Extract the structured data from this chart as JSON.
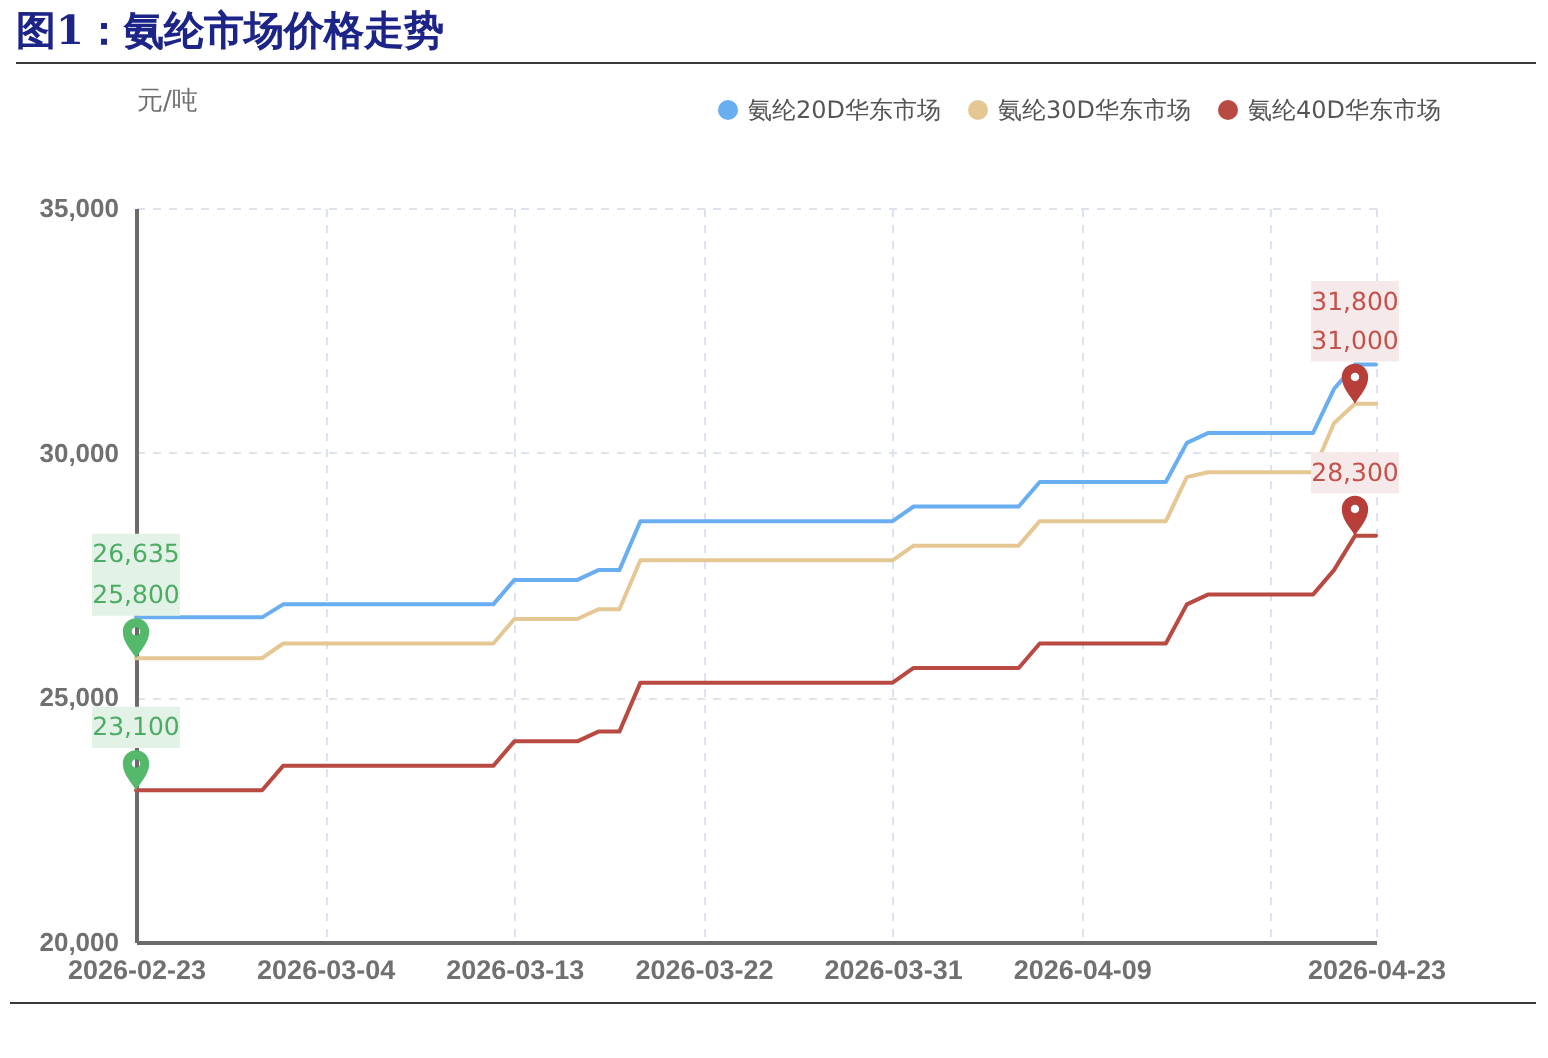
{
  "chart_data": {
    "type": "line",
    "title": "图1：氨纶市场价格走势",
    "ylabel": "元/吨",
    "x": [
      "2026-02-23",
      "2026-03-01",
      "2026-03-02",
      "2026-03-12",
      "2026-03-13",
      "2026-03-16",
      "2026-03-17",
      "2026-03-18",
      "2026-03-19",
      "2026-03-31",
      "2026-04-01",
      "2026-04-06",
      "2026-04-07",
      "2026-04-13",
      "2026-04-14",
      "2026-04-15",
      "2026-04-20",
      "2026-04-21",
      "2026-04-22",
      "2026-04-23"
    ],
    "series": [
      {
        "name": "氨纶20D华东市场",
        "color": "#6aaef2",
        "values": [
          26635,
          26635,
          26900,
          26900,
          27400,
          27400,
          27600,
          27600,
          28600,
          28600,
          28900,
          28900,
          29400,
          29400,
          30200,
          30400,
          30400,
          31300,
          31800,
          31800
        ]
      },
      {
        "name": "氨纶30D华东市场",
        "color": "#e5c794",
        "values": [
          25800,
          25800,
          26100,
          26100,
          26600,
          26600,
          26800,
          26800,
          27800,
          27800,
          28100,
          28100,
          28600,
          28600,
          29500,
          29600,
          29600,
          30600,
          31000,
          31000
        ]
      },
      {
        "name": "氨纶40D华东市场",
        "color": "#b84a42",
        "values": [
          23100,
          23100,
          23600,
          23600,
          24100,
          24100,
          24300,
          24300,
          25300,
          25300,
          25600,
          25600,
          26100,
          26100,
          26900,
          27100,
          27100,
          27600,
          28300,
          28300
        ]
      }
    ],
    "xlim": [
      "2026-02-23",
      "2026-04-23"
    ],
    "xticks": [
      "2026-02-23",
      "2026-03-04",
      "2026-03-13",
      "2026-03-22",
      "2026-03-31",
      "2026-04-09",
      {
        "value": "2026-04-18",
        "label": null
      },
      "2026-04-23"
    ],
    "ylim": [
      20000,
      35000
    ],
    "yticks": [
      {
        "value": 20000,
        "label": "20,000"
      },
      {
        "value": 25000,
        "label": "25,000"
      },
      {
        "value": 30000,
        "label": "30,000"
      },
      {
        "value": 35000,
        "label": "35,000"
      }
    ],
    "annotations": [
      {
        "text": "26,635",
        "x": "2026-02-23",
        "y": 26635
      },
      {
        "text": "25,800",
        "x": "2026-02-23",
        "y": 25800
      },
      {
        "text": "23,100",
        "x": "2026-02-23",
        "y": 23100
      },
      {
        "text": "31,800",
        "x": "2026-04-22",
        "y": 31800
      },
      {
        "text": "31,000",
        "x": "2026-04-22",
        "y": 31000
      },
      {
        "text": "28,300",
        "x": "2026-04-22",
        "y": 28300
      }
    ],
    "grid": true,
    "legend": "top right"
  }
}
